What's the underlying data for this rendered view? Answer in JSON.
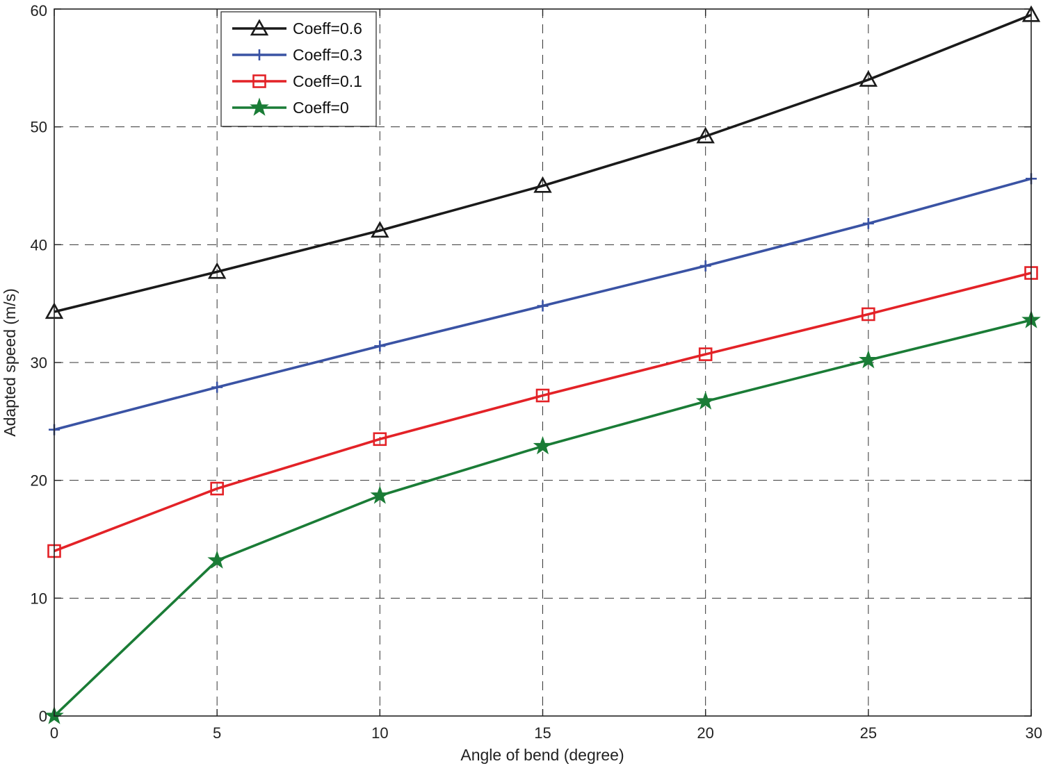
{
  "chart_data": {
    "type": "line",
    "title": "",
    "xlabel": "Angle of bend (degree)",
    "ylabel": "Adapted speed (m/s)",
    "xlim": [
      0,
      30
    ],
    "ylim": [
      0,
      60
    ],
    "x": [
      0,
      5,
      10,
      15,
      20,
      25,
      30
    ],
    "xticks": [
      0,
      5,
      10,
      15,
      20,
      25,
      30
    ],
    "yticks": [
      0,
      10,
      20,
      30,
      40,
      50,
      60
    ],
    "xtick_labels": [
      "0",
      "5",
      "10",
      "15",
      "20",
      "25",
      "30"
    ],
    "ytick_labels": [
      "0",
      "10",
      "20",
      "30",
      "40",
      "50",
      "60"
    ],
    "grid": true,
    "legend_position": "top-left",
    "series": [
      {
        "name": "Coeff=0.6",
        "color": "#1a1a1a",
        "marker": "triangle",
        "values": [
          34.3,
          37.7,
          41.2,
          45.0,
          49.2,
          54.0,
          59.5
        ]
      },
      {
        "name": "Coeff=0.3",
        "color": "#3a53a4",
        "marker": "plus",
        "values": [
          24.3,
          27.9,
          31.4,
          34.8,
          38.2,
          41.8,
          45.6
        ]
      },
      {
        "name": "Coeff=0.1",
        "color": "#e32227",
        "marker": "square",
        "values": [
          14.0,
          19.3,
          23.5,
          27.2,
          30.7,
          34.1,
          37.6
        ]
      },
      {
        "name": "Coeff=0",
        "color": "#1a7c36",
        "marker": "star",
        "values": [
          0.0,
          13.2,
          18.7,
          22.9,
          26.7,
          30.2,
          33.6
        ]
      }
    ]
  }
}
